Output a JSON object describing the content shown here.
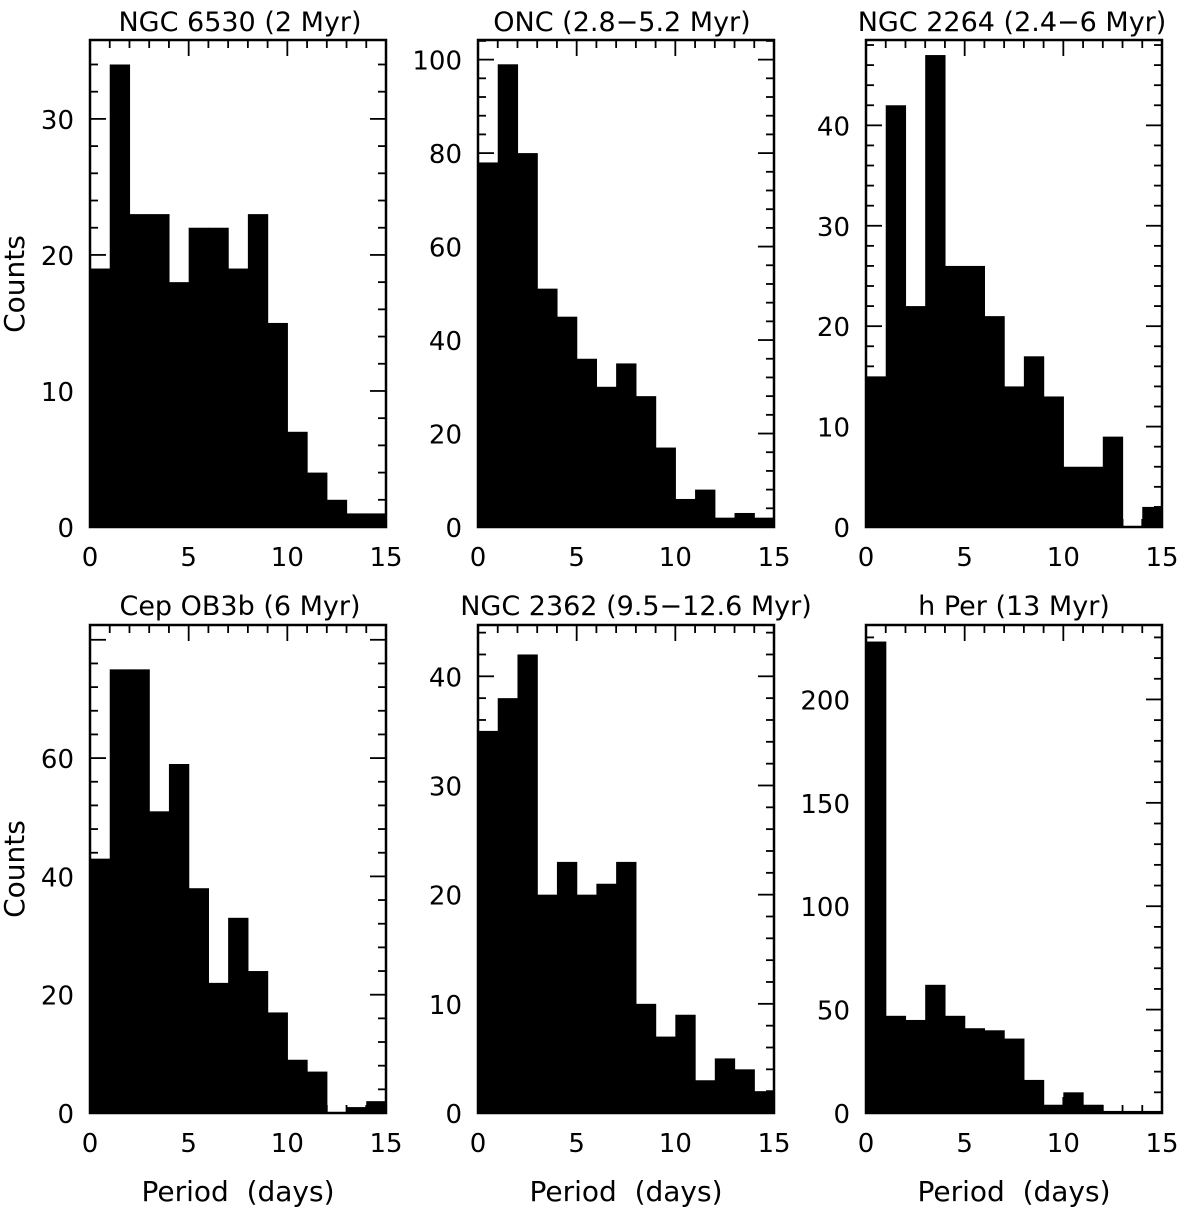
{
  "figure": {
    "ylabel": "Counts",
    "xlabel": "Period  (days)"
  },
  "chart_data": [
    {
      "type": "bar",
      "title": "NGC 6530  (2 Myr)",
      "xlabel": "",
      "ylabel": "Counts",
      "xlim": [
        0,
        15
      ],
      "ylim": [
        0,
        35.8
      ],
      "bin_width": 1,
      "x_ticks": [
        0,
        5,
        10,
        15
      ],
      "y_ticks": [
        0,
        10,
        20,
        30
      ],
      "bins": [
        0,
        1,
        2,
        3,
        4,
        5,
        6,
        7,
        8,
        9,
        10,
        11,
        12,
        13,
        14
      ],
      "values": [
        19,
        34,
        23,
        23,
        18,
        22,
        22,
        19,
        23,
        15,
        7,
        4,
        2,
        1,
        1
      ]
    },
    {
      "type": "bar",
      "title": "ONC  (2.8−5.2 Myr)",
      "xlabel": "",
      "ylabel": "",
      "xlim": [
        0,
        15
      ],
      "ylim": [
        0,
        104.2
      ],
      "bin_width": 1,
      "x_ticks": [
        0,
        5,
        10,
        15
      ],
      "y_ticks": [
        0,
        20,
        40,
        60,
        80,
        100
      ],
      "bins": [
        0,
        1,
        2,
        3,
        4,
        5,
        6,
        7,
        8,
        9,
        10,
        11,
        12,
        13,
        14
      ],
      "values": [
        78,
        99,
        80,
        51,
        45,
        36,
        30,
        35,
        28,
        17,
        6,
        8,
        2,
        3,
        2
      ]
    },
    {
      "type": "bar",
      "title": "NGC 2264  (2.4−6 Myr)",
      "xlabel": "",
      "ylabel": "",
      "xlim": [
        0,
        15
      ],
      "ylim": [
        0,
        48.5
      ],
      "bin_width": 1,
      "x_ticks": [
        0,
        5,
        10,
        15
      ],
      "y_ticks": [
        0,
        10,
        20,
        30,
        40
      ],
      "bins": [
        0,
        1,
        2,
        3,
        4,
        5,
        6,
        7,
        8,
        9,
        10,
        11,
        12,
        13,
        14
      ],
      "values": [
        15,
        42,
        22,
        47,
        26,
        26,
        21,
        14,
        17,
        13,
        6,
        6,
        9,
        0,
        2
      ]
    },
    {
      "type": "bar",
      "title": "Cep OB3b  (6 Myr)",
      "xlabel": "Period  (days)",
      "ylabel": "Counts",
      "xlim": [
        0,
        15
      ],
      "ylim": [
        0,
        82.5
      ],
      "bin_width": 1,
      "x_ticks": [
        0,
        5,
        10,
        15
      ],
      "y_ticks": [
        0,
        20,
        40,
        60
      ],
      "bins": [
        0,
        1,
        2,
        3,
        4,
        5,
        6,
        7,
        8,
        9,
        10,
        11,
        12,
        13,
        14
      ],
      "values": [
        43,
        75,
        75,
        51,
        59,
        38,
        22,
        33,
        24,
        17,
        9,
        7,
        0,
        1,
        2
      ]
    },
    {
      "type": "bar",
      "title": "NGC 2362  (9.5−12.6 Myr)",
      "xlabel": "Period  (days)",
      "ylabel": "",
      "xlim": [
        0,
        15
      ],
      "ylim": [
        0,
        44.7
      ],
      "bin_width": 1,
      "x_ticks": [
        0,
        5,
        10,
        15
      ],
      "y_ticks": [
        0,
        10,
        20,
        30,
        40
      ],
      "bins": [
        0,
        1,
        2,
        3,
        4,
        5,
        6,
        7,
        8,
        9,
        10,
        11,
        12,
        13,
        14
      ],
      "values": [
        35,
        38,
        42,
        20,
        23,
        20,
        21,
        23,
        10,
        7,
        9,
        3,
        5,
        4,
        2
      ]
    },
    {
      "type": "bar",
      "title": "h Per  (13 Myr)",
      "xlabel": "Period  (days)",
      "ylabel": "",
      "xlim": [
        0,
        15
      ],
      "ylim": [
        0,
        236
      ],
      "bin_width": 1,
      "x_ticks": [
        0,
        5,
        10,
        15
      ],
      "y_ticks": [
        0,
        50,
        100,
        150,
        200
      ],
      "bins": [
        0,
        1,
        2,
        3,
        4,
        5,
        6,
        7,
        8,
        9,
        10,
        11,
        12,
        13,
        14
      ],
      "values": [
        228,
        47,
        45,
        62,
        47,
        41,
        40,
        36,
        16,
        4,
        10,
        4,
        1,
        1,
        1
      ]
    }
  ]
}
